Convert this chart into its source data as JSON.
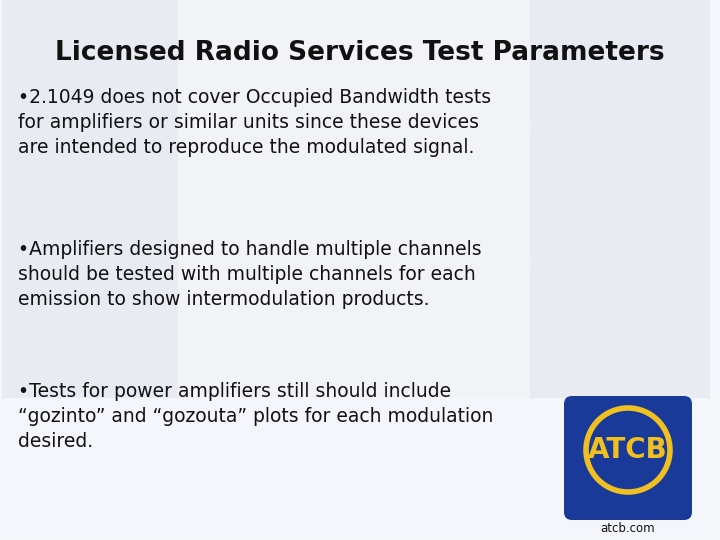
{
  "title": "Licensed Radio Services Test Parameters",
  "bullet1": "•2.1049 does not cover Occupied Bandwidth tests\nfor amplifiers or similar units since these devices\nare intended to reproduce the modulated signal.",
  "bullet2": "•Amplifiers designed to handle multiple channels\nshould be tested with multiple channels for each\nemission to show intermodulation products.",
  "bullet3": "•Tests for power amplifiers still should include\n“gozinto” and “gozouta” plots for each modulation\ndesired.",
  "bg_color": "#f0f2f8",
  "tile_color_light": "#e8eaf2",
  "tile_color_mid": "#d8dce8",
  "tile_color_dark": "#c8ccdc",
  "text_color": "#111111",
  "title_color": "#111111",
  "logo_bg": "#1a3a9a",
  "logo_text": "#f0c020",
  "logo_label": "ATCB",
  "logo_url": "atcb.com",
  "title_fontsize": 19,
  "body_fontsize": 13.5
}
